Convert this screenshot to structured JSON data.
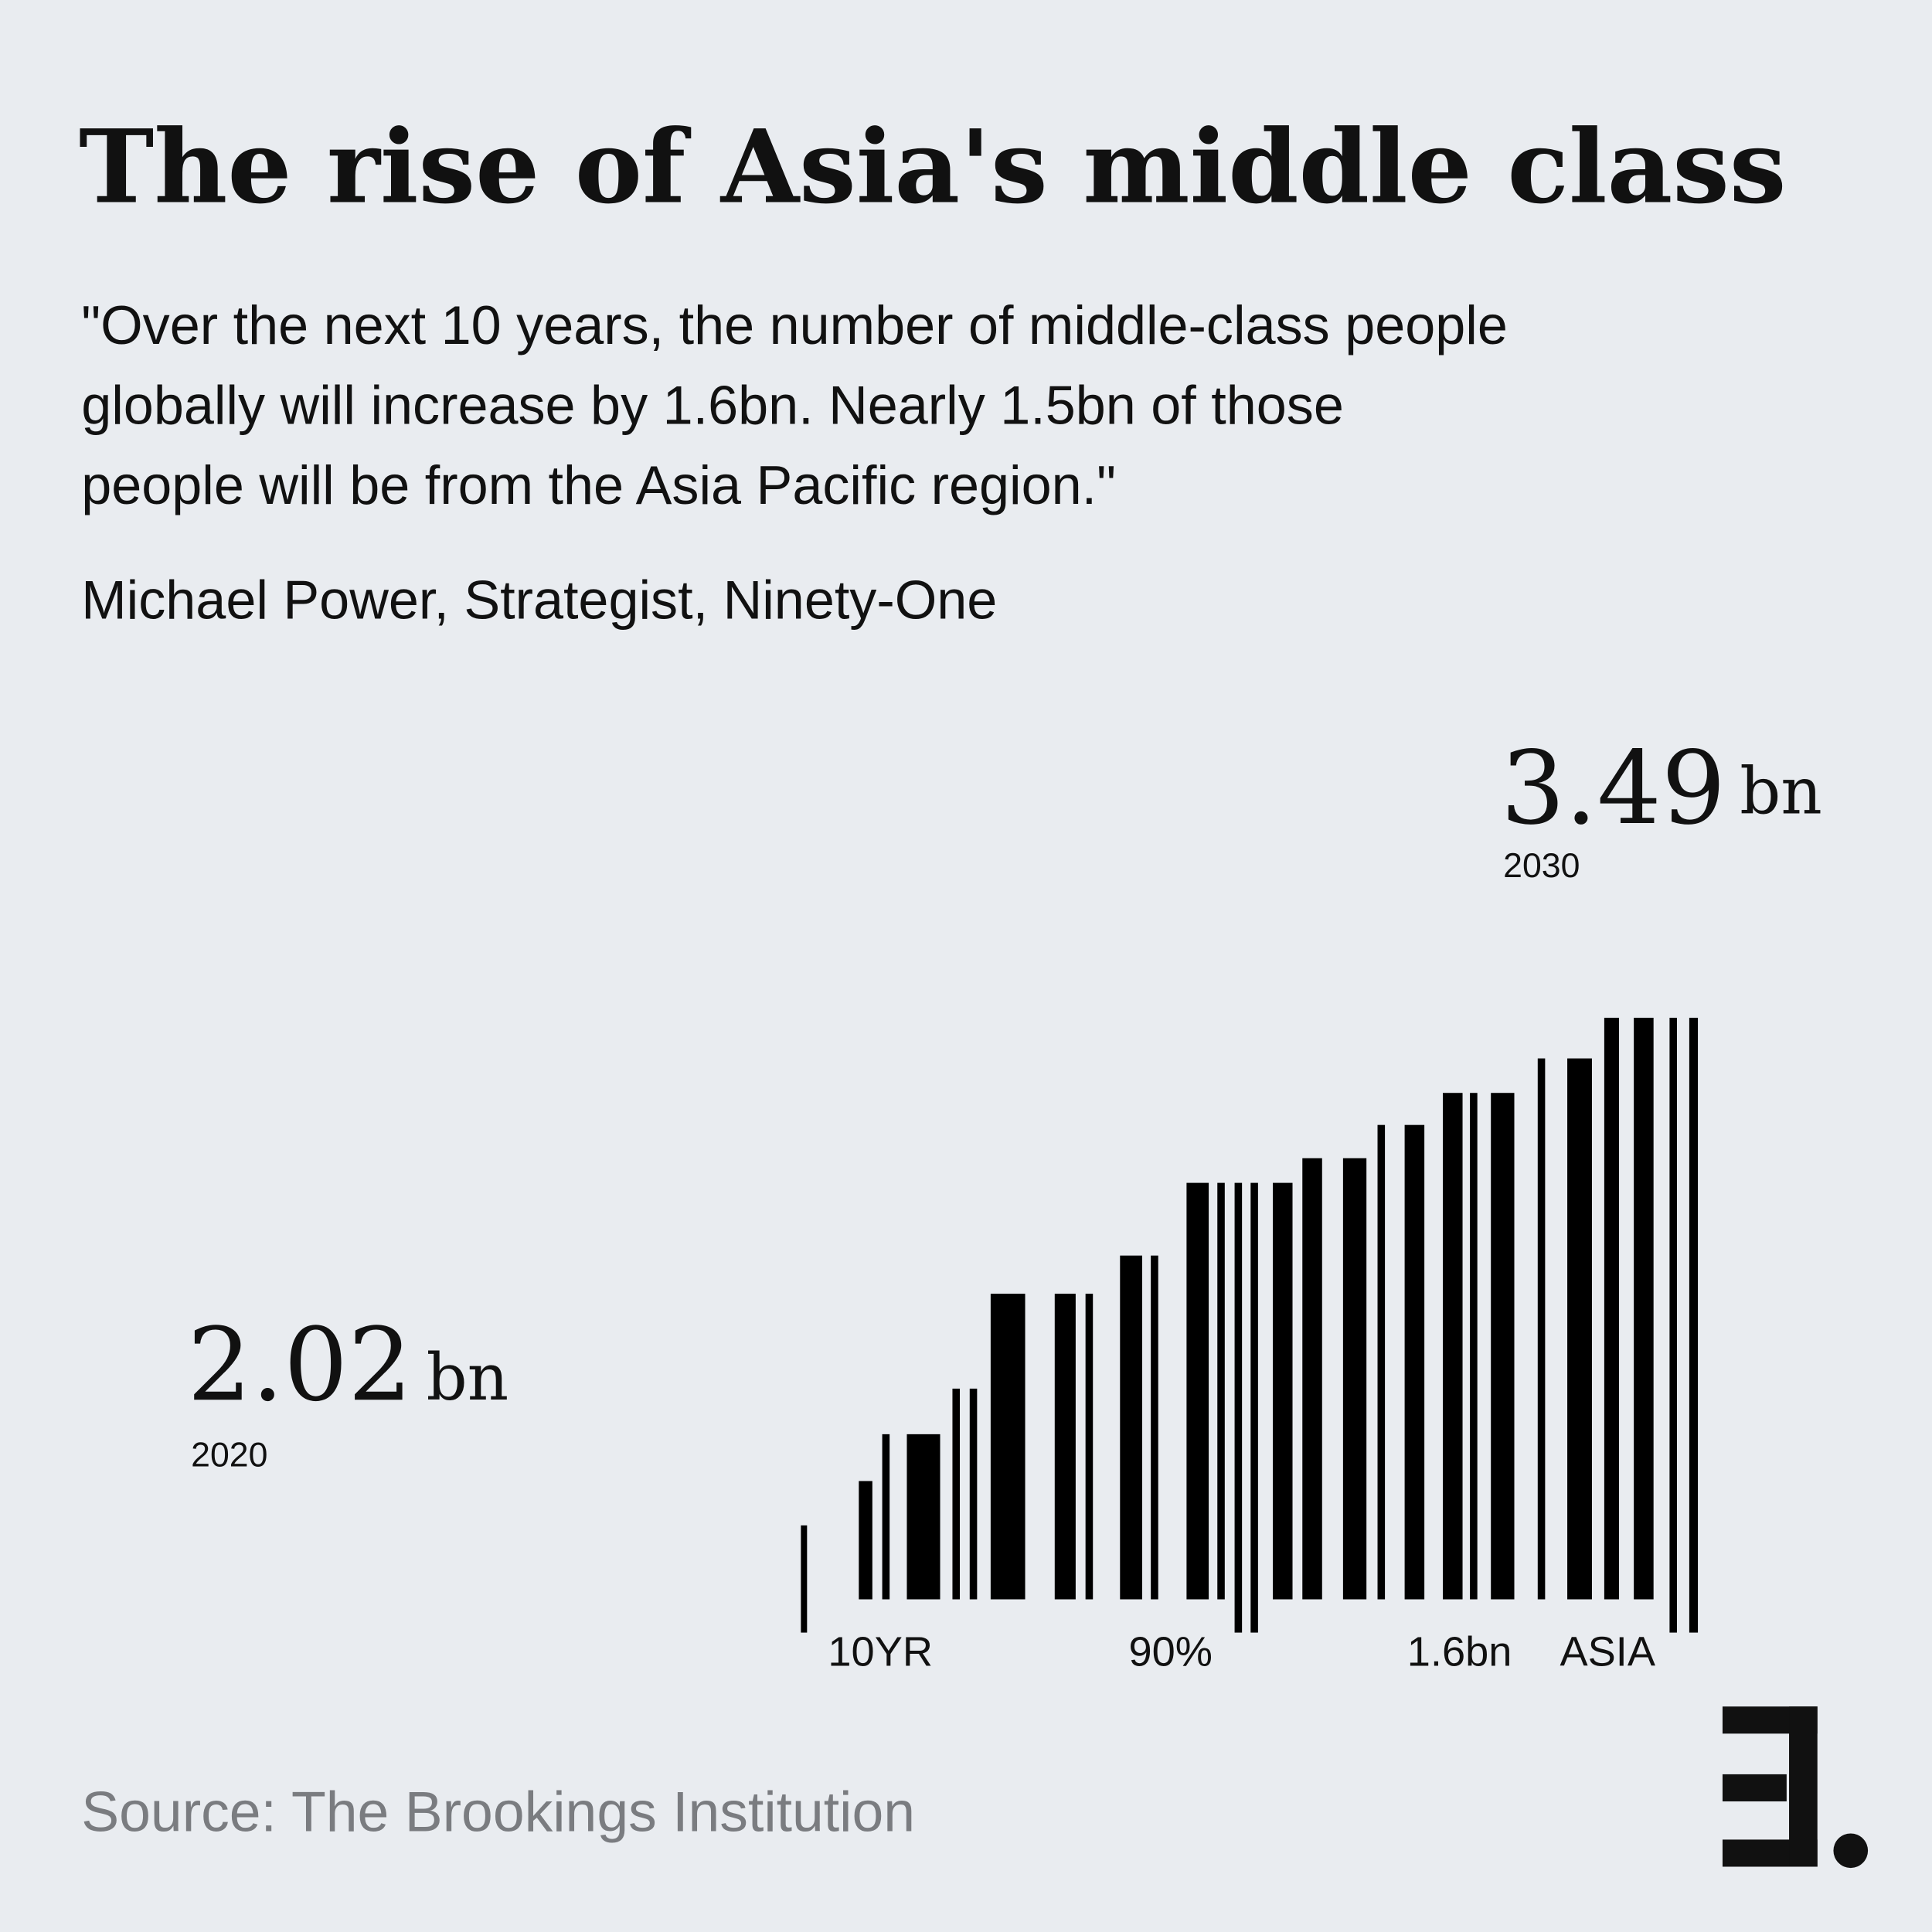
{
  "header": {
    "title": "The rise of Asia's middle class"
  },
  "quote": {
    "lines": [
      "\"Over the next 10 years, the number of middle-class people",
      "globally will increase by 1.6bn. Nearly 1.5bn of those",
      "people will be from the Asia Pacific region.\""
    ],
    "attribution": "Michael Power, Strategist, Ninety-One"
  },
  "figures": [
    {
      "number": "2.02",
      "unit": "bn",
      "year": "2020"
    },
    {
      "number": "3.49",
      "unit": "bn",
      "year": "2030"
    }
  ],
  "barcode_labels": [
    "10YR",
    "90%",
    "1.6bn",
    "ASIA"
  ],
  "footer": {
    "source": "Source: The Brookings Institution"
  }
}
